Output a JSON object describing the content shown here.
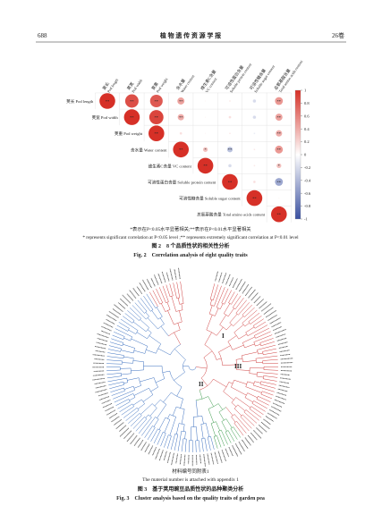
{
  "header": {
    "page": "688",
    "journal": "植 物 遗 传 资 源 学 报",
    "volume": "26卷"
  },
  "figure2": {
    "matrix": {
      "traits": [
        {
          "zh": "荚长",
          "en": "Pod length"
        },
        {
          "zh": "荚宽",
          "en": "Pod width"
        },
        {
          "zh": "荚重",
          "en": "Pod weight"
        },
        {
          "zh": "含水量",
          "en": "Water content"
        },
        {
          "zh": "维生素C含量",
          "en": "VC content"
        },
        {
          "zh": "可溶性蛋白含量",
          "en": "Soluble protein content"
        },
        {
          "zh": "可溶性糖含量",
          "en": "Soluble sugar content"
        },
        {
          "zh": "总氨基酸含量",
          "en": "Total amino acids content"
        }
      ],
      "values": [
        [
          1,
          0.85,
          0.8,
          0.45,
          0.05,
          0.1,
          -0.2,
          0.5
        ],
        [
          null,
          1,
          0.9,
          0.4,
          0.05,
          0.15,
          -0.2,
          0.45
        ],
        [
          null,
          null,
          1,
          0.15,
          0.05,
          0.1,
          -0.1,
          0.4
        ],
        [
          null,
          null,
          null,
          1,
          0.3,
          -0.35,
          0.1,
          0.5
        ],
        [
          null,
          null,
          null,
          null,
          1,
          -0.2,
          0.1,
          0.3
        ],
        [
          null,
          null,
          null,
          null,
          null,
          1,
          0.15,
          -0.5
        ],
        [
          null,
          null,
          null,
          null,
          null,
          null,
          1,
          0.05
        ],
        [
          null,
          null,
          null,
          null,
          null,
          null,
          null,
          1
        ]
      ],
      "labels": [
        [
          "**",
          "**",
          "**",
          "**",
          null,
          null,
          null,
          "**"
        ],
        [
          null,
          "**",
          "**",
          "**",
          null,
          null,
          null,
          "**"
        ],
        [
          null,
          null,
          "**",
          null,
          null,
          null,
          null,
          "**"
        ],
        [
          null,
          null,
          null,
          "**",
          "*",
          "**",
          null,
          "**"
        ],
        [
          null,
          null,
          null,
          null,
          "**",
          null,
          null,
          "*"
        ],
        [
          null,
          null,
          null,
          null,
          null,
          "**",
          null,
          "**"
        ],
        [
          null,
          null,
          null,
          null,
          null,
          null,
          "**",
          null
        ],
        [
          null,
          null,
          null,
          null,
          null,
          null,
          null,
          "**"
        ]
      ],
      "scale_ticks": [
        1,
        0.8,
        0.6,
        0.4,
        0.2,
        0,
        -0.2,
        -0.4,
        -0.6,
        -0.8,
        -1
      ]
    },
    "note_zh": "*表示在P<0.05水平显著相关;**表示在P<0.01水平显著相关",
    "note_en": "* represents significant correlation at P<0.05 level ;** represents extremely significant correlation at P<0.01 level",
    "caption_zh": "图 2　8 个品质性状的相关性分析",
    "caption_en": "Fig. 2　Correlation analysis of eight quality traits"
  },
  "figure3": {
    "groups": [
      "I",
      "II",
      "III"
    ],
    "note_zh": "材料编号同附表1",
    "note_en": "The material number is attached with appendix 1",
    "caption_zh": "图 3　基于荚用豌豆品质性状的品种聚类分析",
    "caption_en": "Fig. 3　Cluster analysis based on the quality traits of garden pea"
  }
}
